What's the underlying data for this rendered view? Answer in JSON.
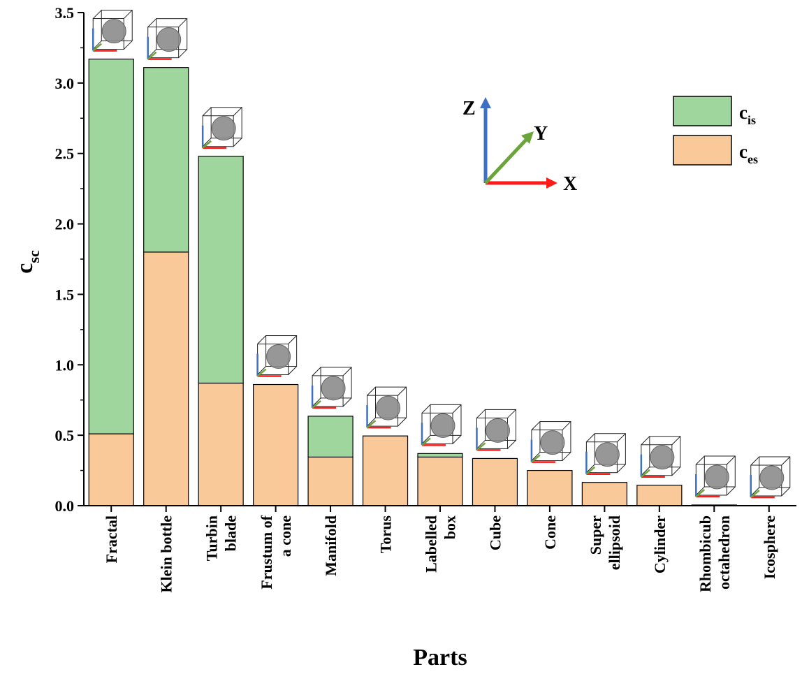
{
  "chart_data": {
    "type": "bar",
    "stacked": true,
    "categories": [
      [
        "Fractal"
      ],
      [
        "Klein bottle"
      ],
      [
        "Turbin",
        "blade"
      ],
      [
        "Frustum of",
        "a cone"
      ],
      [
        "Manifold"
      ],
      [
        "Torus"
      ],
      [
        "Labelled",
        "box"
      ],
      [
        "Cube"
      ],
      [
        "Cone"
      ],
      [
        "Super",
        "ellipsoid"
      ],
      [
        "Cylinder"
      ],
      [
        "Rhombicub",
        "octahedron"
      ],
      [
        "Icosphere"
      ]
    ],
    "series": [
      {
        "name": "c_es",
        "label_main": "c",
        "label_sub": "es",
        "color": "#F9C99A",
        "values": [
          0.51,
          1.8,
          0.87,
          0.86,
          0.345,
          0.495,
          0.345,
          0.335,
          0.25,
          0.165,
          0.145,
          0.005,
          0.0
        ]
      },
      {
        "name": "c_is",
        "label_main": "c",
        "label_sub": "is",
        "color": "#9ED69E",
        "values": [
          2.66,
          1.31,
          1.61,
          0.0,
          0.29,
          0.0,
          0.025,
          0.0,
          0.0,
          0.0,
          0.0,
          0.0,
          0.0
        ]
      }
    ],
    "ylim": [
      0,
      3.5
    ],
    "yticks": [
      "0.0",
      "0.5",
      "1.0",
      "1.5",
      "2.0",
      "2.5",
      "3.0",
      "3.5"
    ],
    "xlabel": "Parts",
    "ylabel_main": "c",
    "ylabel_sub": "sc",
    "legend_position": "top-right",
    "grid": false,
    "axes_triad": {
      "x": "X",
      "y": "Y",
      "z": "Z"
    },
    "thumbnail_icons": [
      "fractal-icon",
      "klein-bottle-icon",
      "turbine-blade-icon",
      "frustum-icon",
      "manifold-icon",
      "torus-icon",
      "labelled-box-icon",
      "cube-icon",
      "cone-icon",
      "super-ellipsoid-icon",
      "cylinder-icon",
      "rhombicuboctahedron-icon",
      "icosphere-icon"
    ]
  }
}
